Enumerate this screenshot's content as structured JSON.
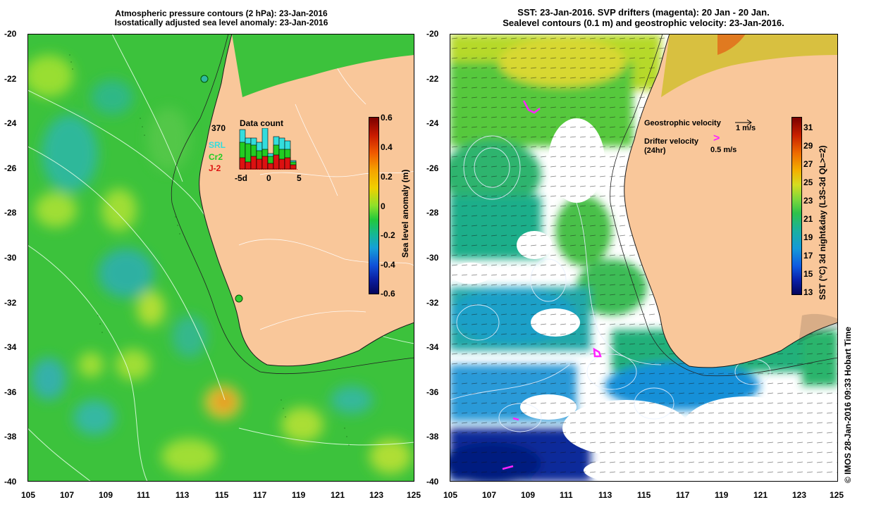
{
  "left_panel": {
    "title_line1": "Atmospheric pressure contours (2 hPa): 23-Jan-2016",
    "title_line2": "Isostatically adjusted sea level anomaly: 23-Jan-2016",
    "colorbar": {
      "label": "Sea level anomaly (m)",
      "ticks": [
        "0.6",
        "0.4",
        "0.2",
        "0",
        "-0.2",
        "-0.4",
        "-0.6"
      ]
    },
    "inset": {
      "title": "Data count",
      "count": "370",
      "legend": [
        {
          "label": "SRL",
          "color": "#33dddd"
        },
        {
          "label": "Cr2",
          "color": "#22cc22"
        },
        {
          "label": "J-2",
          "color": "#dd1111"
        }
      ],
      "x_ticks": [
        "-5d",
        "0",
        "5"
      ]
    }
  },
  "right_panel": {
    "title_line1": "SST: 23-Jan-2016. SVP drifters (magenta): 20 Jan - 20 Jan.",
    "title_line2": "Sealevel contours (0.1 m) and geostrophic velocity: 23-Jan-2016.",
    "legend": {
      "geo_label": "Geostrophic velocity",
      "geo_scale": "1 m/s",
      "drifter_label": "Drifter velocity",
      "drifter_sub": "(24hr)",
      "drifter_scale": "0.5 m/s",
      "drifter_symbol": ">"
    },
    "colorbar": {
      "label": "SST (°C) 3d night&day (L3S-3d QL>=2)",
      "ticks": [
        "31",
        "29",
        "27",
        "25",
        "23",
        "21",
        "19",
        "17",
        "15",
        "13"
      ]
    }
  },
  "lat_ticks": [
    "-20",
    "-22",
    "-24",
    "-26",
    "-28",
    "-30",
    "-32",
    "-34",
    "-36",
    "-38",
    "-40"
  ],
  "lon_ticks": [
    "105",
    "107",
    "109",
    "111",
    "113",
    "115",
    "117",
    "119",
    "121",
    "123",
    "125"
  ],
  "credit": "© IMOS 28-Jan-2016 09:33 Hobart Time",
  "colors": {
    "land": "#f9c79a",
    "ocean_sla": "#3cc23c",
    "cloud": "#ffffff",
    "drifter": "#ff22ff"
  }
}
